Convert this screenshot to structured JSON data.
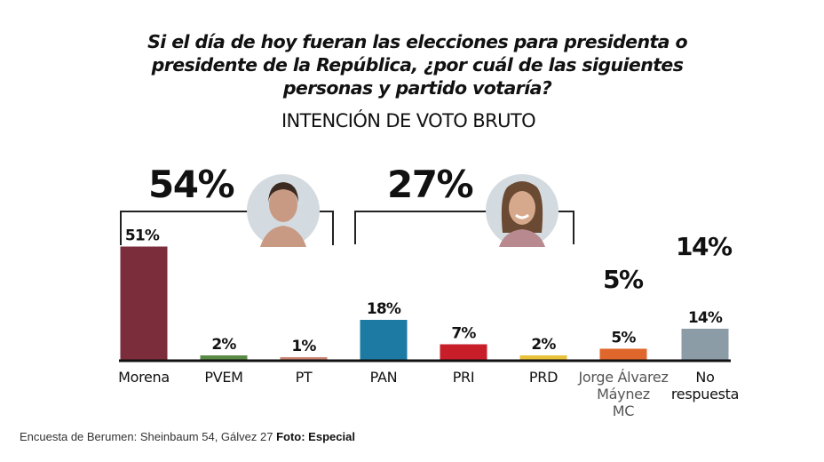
{
  "question": "Si el día de hoy fueran las elecciones para presidenta o presidente de la República, ¿por cuál de las siguientes personas y partido votaría?",
  "caption": {
    "text": "Encuesta de Berumen: Sheinbaum 54, Gálvez 27",
    "credit": "Foto: Especial"
  },
  "chart_data": {
    "type": "bar",
    "title": "Si el día de hoy fueran las elecciones para presidenta o presidente de la República, ¿por cuál de las siguientes personas y partido votaría?",
    "subtitle": "INTENCIÓN DE VOTO BRUTO",
    "xlabel": "",
    "ylabel": "",
    "ylim": [
      0,
      54
    ],
    "grid": false,
    "categories": [
      "Morena",
      "PVEM",
      "PT",
      "PAN",
      "PRI",
      "PRD",
      "Jorge Álvarez Máynez MC",
      "No respuesta"
    ],
    "category_lines": [
      [
        "Morena"
      ],
      [
        "PVEM"
      ],
      [
        "PT"
      ],
      [
        "PAN"
      ],
      [
        "PRI"
      ],
      [
        "PRD"
      ],
      [
        "Jorge Álvarez",
        "Máynez",
        "MC"
      ],
      [
        "No",
        "respuesta"
      ]
    ],
    "values": [
      51,
      2,
      1,
      18,
      7,
      2,
      5,
      14
    ],
    "value_labels": [
      "51%",
      "2%",
      "1%",
      "18%",
      "7%",
      "2%",
      "5%",
      "14%"
    ],
    "colors": [
      "#7b2d3c",
      "#5a8a45",
      "#c98470",
      "#1c7aa3",
      "#c81e2a",
      "#e9c23c",
      "#e0672c",
      "#8b9ca6"
    ],
    "groups": [
      {
        "name": "Sheinbaum coalition",
        "members": [
          "Morena",
          "PVEM",
          "PT"
        ],
        "total_label": "54%",
        "total": 54,
        "photo": "Claudia Sheinbaum portrait"
      },
      {
        "name": "Gálvez coalition",
        "members": [
          "PAN",
          "PRI",
          "PRD"
        ],
        "total_label": "27%",
        "total": 27,
        "photo": "Xóchitl Gálvez portrait"
      },
      {
        "name": "Máynez",
        "members": [
          "Jorge Álvarez Máynez MC"
        ],
        "total_label": "5%",
        "total": 5
      },
      {
        "name": "No respuesta",
        "members": [
          "No respuesta"
        ],
        "total_label": "14%",
        "total": 14
      }
    ]
  }
}
